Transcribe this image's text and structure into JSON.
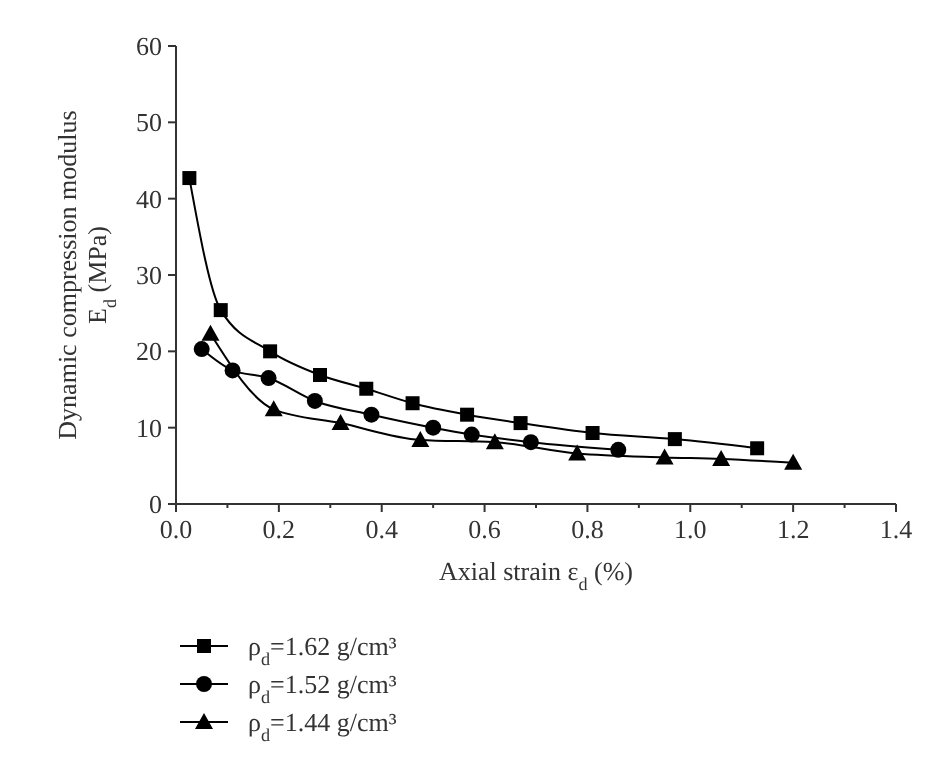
{
  "chart_data": {
    "type": "line",
    "xlabel": "Axial strain ε$_{d}$ (%)",
    "ylabel": "Dynamic compression modulus\nE$_{d}$ (MPa)",
    "xlim": [
      0,
      1.4
    ],
    "xticks": [
      {
        "value": 0,
        "label": "0.0"
      },
      0.2,
      0.4,
      0.6,
      0.8,
      {
        "value": 1,
        "label": "1.0"
      },
      1.2,
      1.4
    ],
    "ylim": [
      0,
      60
    ],
    "yticks": [
      0,
      10,
      20,
      30,
      40,
      50,
      60
    ],
    "grid": false,
    "legend": "bottom",
    "line_style": "solid",
    "series": [
      {
        "name": "ρ$_{d}$=1.62 g/cm³",
        "color": "#000000",
        "marker": "square",
        "x": [
          0.026,
          0.087,
          0.183,
          0.28,
          0.37,
          0.46,
          0.566,
          0.67,
          0.81,
          0.97,
          1.13
        ],
        "values": [
          42.7,
          25.4,
          20.0,
          16.9,
          15.1,
          13.2,
          11.7,
          10.6,
          9.3,
          8.5,
          7.3
        ]
      },
      {
        "name": "ρ$_{d}$=1.52 g/cm³",
        "color": "#000000",
        "marker": "circle",
        "x": [
          0.05,
          0.11,
          0.18,
          0.27,
          0.38,
          0.5,
          0.575,
          0.69,
          0.86
        ],
        "values": [
          20.3,
          17.5,
          16.5,
          13.5,
          11.7,
          10.0,
          9.1,
          8.1,
          7.1
        ]
      },
      {
        "name": "ρ$_{d}$=1.44 g/cm³",
        "color": "#000000",
        "marker": "triangle",
        "x": [
          0.067,
          0.19,
          0.32,
          0.475,
          0.62,
          0.78,
          0.95,
          1.06,
          1.2
        ],
        "values": [
          22.3,
          12.4,
          10.6,
          8.4,
          8.1,
          6.6,
          6.1,
          5.9,
          5.4
        ]
      }
    ]
  }
}
